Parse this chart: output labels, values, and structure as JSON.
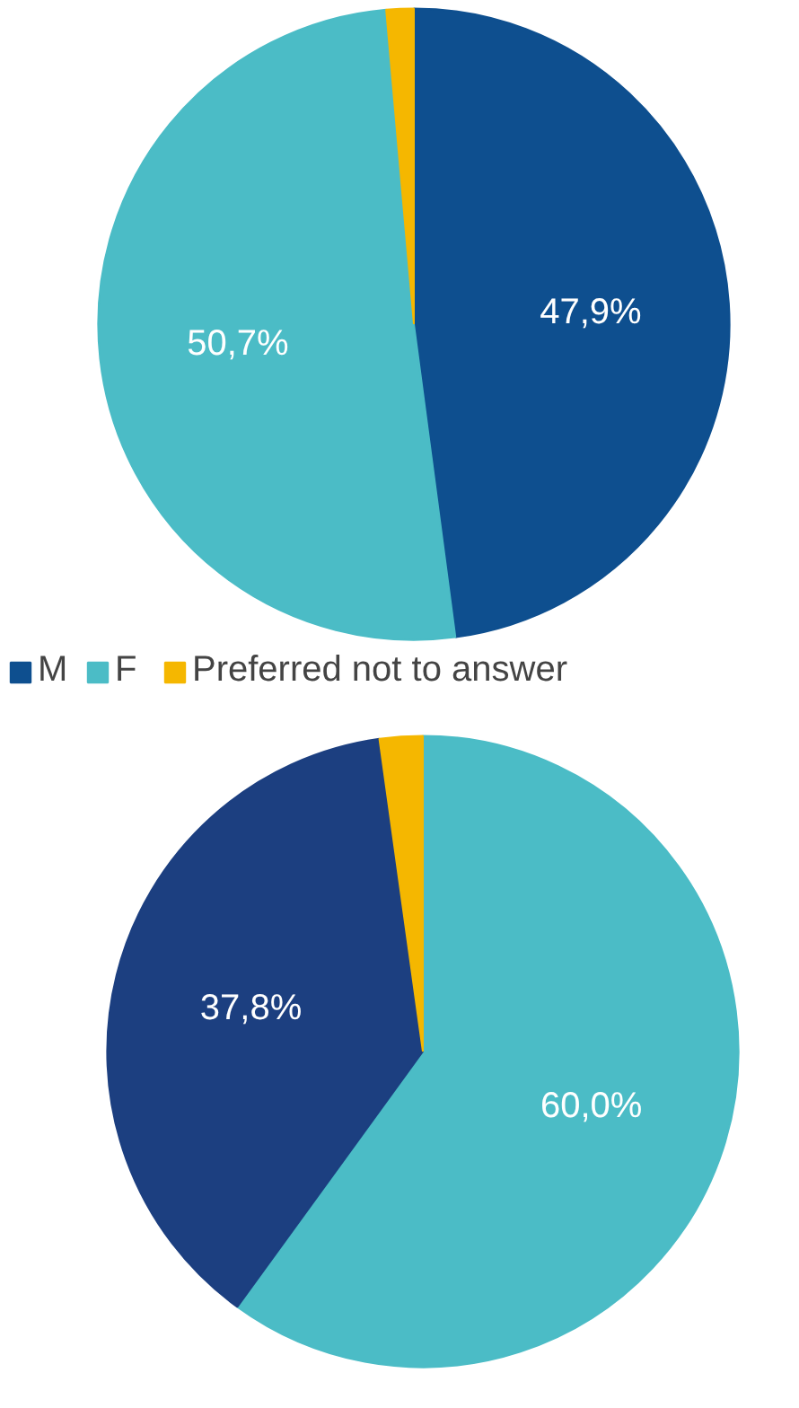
{
  "chart_data": [
    {
      "type": "pie",
      "categories": [
        "M",
        "F",
        "Preferred not to answer"
      ],
      "values": [
        47.9,
        50.7,
        1.4
      ],
      "colors": [
        "#0e4f8f",
        "#4bbcc6",
        "#f5b700"
      ],
      "value_labels": [
        "47,9%",
        "50,7%",
        null
      ],
      "legend": "bottom"
    },
    {
      "type": "pie",
      "categories": [
        null,
        null,
        null
      ],
      "values": [
        60.0,
        37.8,
        2.2
      ],
      "colors": [
        "#4bbcc6",
        "#1c3f80",
        "#f5b700"
      ],
      "value_labels": [
        "60,0%",
        "37,8%",
        null
      ]
    }
  ]
}
